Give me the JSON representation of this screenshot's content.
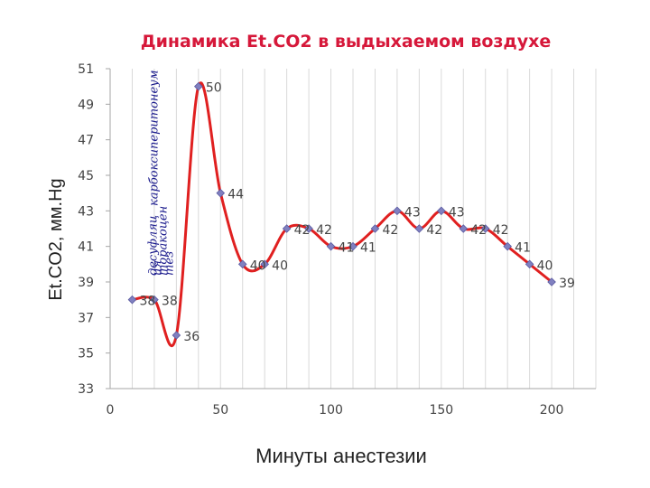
{
  "chart_data": {
    "type": "line",
    "title": "Динамика Et.CO2 в выдыхаемом воздухе",
    "xlabel": "Минуты анестезии",
    "ylabel": "Et.CO2, мм.Hg",
    "xlim": [
      0,
      220
    ],
    "ylim": [
      33,
      51
    ],
    "xticks": [
      0,
      50,
      100,
      150,
      200
    ],
    "yticks": [
      33,
      35,
      37,
      39,
      41,
      43,
      45,
      47,
      49,
      51
    ],
    "grid": "vertical",
    "legend": "none",
    "colors": {
      "line": "#e02020",
      "marker": "#8080c0",
      "title": "#d6183a",
      "annotation": "#1a1a8c"
    },
    "x": [
      10,
      20,
      30,
      40,
      50,
      60,
      70,
      80,
      90,
      100,
      110,
      120,
      130,
      140,
      150,
      160,
      170,
      180,
      190,
      200
    ],
    "y": [
      38,
      38,
      36,
      50,
      44,
      40,
      40,
      42,
      42,
      41,
      41,
      42,
      43,
      42,
      43,
      42,
      42,
      41,
      40,
      39
    ],
    "labels": [
      "38",
      "38",
      "36",
      "50",
      "44",
      "40",
      "40",
      "42",
      "42",
      "41",
      "41",
      "42",
      "43",
      "42",
      "43",
      "42",
      "42",
      "41",
      "40",
      "39"
    ],
    "annotations": [
      {
        "lines": [
          "десуфляц",
          "ия"
        ]
      },
      {
        "lines": [
          "карбоксиперитонеум",
          "торакоцен",
          "тез"
        ]
      }
    ]
  }
}
